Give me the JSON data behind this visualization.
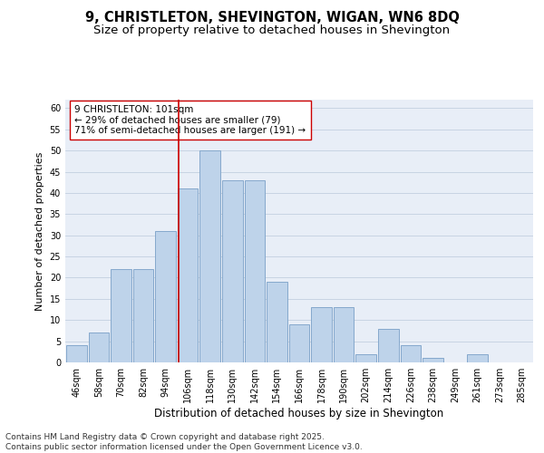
{
  "title": "9, CHRISTLETON, SHEVINGTON, WIGAN, WN6 8DQ",
  "subtitle": "Size of property relative to detached houses in Shevington",
  "xlabel": "Distribution of detached houses by size in Shevington",
  "ylabel": "Number of detached properties",
  "categories": [
    "46sqm",
    "58sqm",
    "70sqm",
    "82sqm",
    "94sqm",
    "106sqm",
    "118sqm",
    "130sqm",
    "142sqm",
    "154sqm",
    "166sqm",
    "178sqm",
    "190sqm",
    "202sqm",
    "214sqm",
    "226sqm",
    "238sqm",
    "249sqm",
    "261sqm",
    "273sqm",
    "285sqm"
  ],
  "values": [
    4,
    7,
    22,
    22,
    31,
    41,
    50,
    43,
    43,
    19,
    9,
    13,
    13,
    2,
    8,
    4,
    1,
    0,
    2,
    0,
    0
  ],
  "bar_color": "#bed3ea",
  "bar_edgecolor": "#85a8cc",
  "bar_linewidth": 0.7,
  "grid_color": "#c8d4e3",
  "background_color": "#e8eef7",
  "vline_color": "#cc0000",
  "vline_x": 4.58,
  "annotation_text": "9 CHRISTLETON: 101sqm\n← 29% of detached houses are smaller (79)\n71% of semi-detached houses are larger (191) →",
  "annotation_box_color": "white",
  "annotation_box_edgecolor": "#cc0000",
  "ylim": [
    0,
    62
  ],
  "yticks": [
    0,
    5,
    10,
    15,
    20,
    25,
    30,
    35,
    40,
    45,
    50,
    55,
    60
  ],
  "title_fontsize": 10.5,
  "subtitle_fontsize": 9.5,
  "xlabel_fontsize": 8.5,
  "ylabel_fontsize": 8,
  "tick_fontsize": 7,
  "annot_fontsize": 7.5,
  "footer_text": "Contains HM Land Registry data © Crown copyright and database right 2025.\nContains public sector information licensed under the Open Government Licence v3.0.",
  "footer_fontsize": 6.5
}
